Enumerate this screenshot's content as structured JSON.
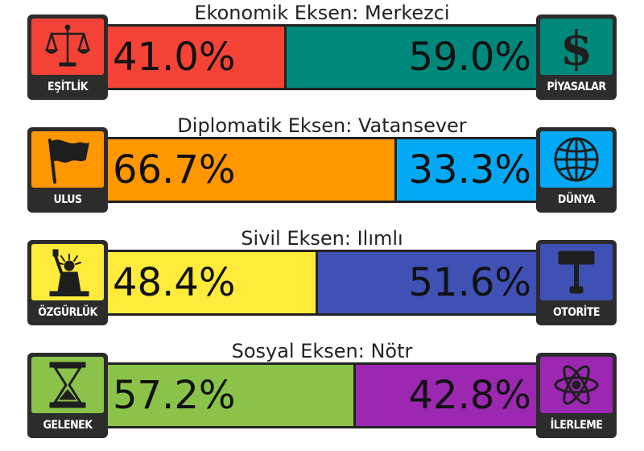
{
  "chart_data": [
    {
      "type": "bar",
      "title": "Ekonomik Eksen: Merkezci",
      "series": [
        {
          "name": "EŞİTLİK",
          "value": 41.0,
          "label": "41.0%",
          "color": "#f44336",
          "icon": "scales-icon"
        },
        {
          "name": "PİYASALAR",
          "value": 59.0,
          "label": "59.0%",
          "color": "#00897b",
          "icon": "dollar-icon"
        }
      ]
    },
    {
      "type": "bar",
      "title": "Diplomatik Eksen: Vatansever",
      "series": [
        {
          "name": "ULUS",
          "value": 66.7,
          "label": "66.7%",
          "color": "#ff9800",
          "icon": "flag-icon"
        },
        {
          "name": "DÜNYA",
          "value": 33.3,
          "label": "33.3%",
          "color": "#03a9f4",
          "icon": "globe-icon"
        }
      ]
    },
    {
      "type": "bar",
      "title": "Sivil Eksen: Ilımlı",
      "series": [
        {
          "name": "ÖZGÜRLÜK",
          "value": 48.4,
          "label": "48.4%",
          "color": "#ffeb3b",
          "icon": "statue-of-liberty-icon"
        },
        {
          "name": "OTORİTE",
          "value": 51.6,
          "label": "51.6%",
          "color": "#3f51b5",
          "icon": "gavel-icon"
        }
      ]
    },
    {
      "type": "bar",
      "title": "Sosyal Eksen: Nötr",
      "series": [
        {
          "name": "GELENEK",
          "value": 57.2,
          "label": "57.2%",
          "color": "#8bc34a",
          "icon": "hourglass-icon"
        },
        {
          "name": "İLERLEME",
          "value": 42.8,
          "label": "42.8%",
          "color": "#9c27b0",
          "icon": "atom-icon"
        }
      ]
    }
  ]
}
